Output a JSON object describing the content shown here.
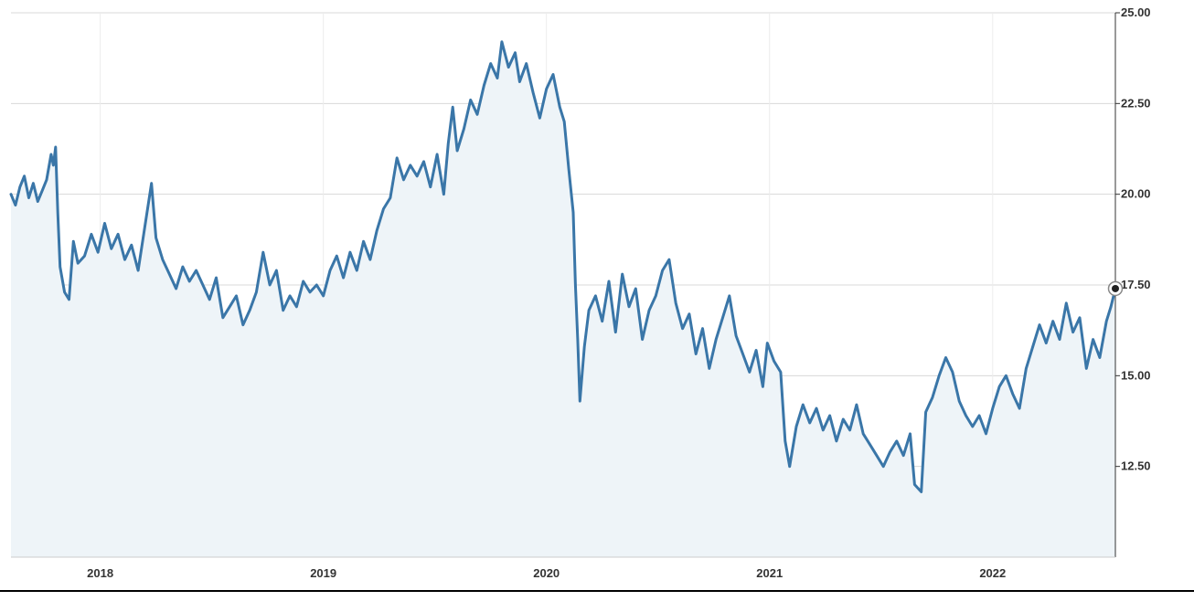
{
  "chart_data": {
    "type": "area",
    "title": "",
    "xlabel": "",
    "ylabel": "",
    "x_ticks": [
      "2018",
      "2019",
      "2020",
      "2021",
      "2022"
    ],
    "x_tick_values": [
      2018.0,
      2019.0,
      2020.0,
      2021.0,
      2022.0
    ],
    "y_ticks": [
      "12.50",
      "15.00",
      "17.50",
      "20.00",
      "22.50",
      "25.00"
    ],
    "y_tick_values": [
      12.5,
      15.0,
      17.5,
      20.0,
      22.5,
      25.0
    ],
    "xlim": [
      2017.6,
      2022.55
    ],
    "ylim": [
      10.0,
      25.0
    ],
    "grid": true,
    "y_axis_side": "right",
    "colors": {
      "line": "#3a76a8",
      "fill": "#eef4f8",
      "grid": "#d8d8d8",
      "axis": "#333333",
      "marker": "#222222"
    },
    "last_point_marker": true,
    "series": [
      {
        "values": [
          [
            2017.6,
            20.0
          ],
          [
            2017.62,
            19.7
          ],
          [
            2017.64,
            20.2
          ],
          [
            2017.66,
            20.5
          ],
          [
            2017.68,
            19.9
          ],
          [
            2017.7,
            20.3
          ],
          [
            2017.72,
            19.8
          ],
          [
            2017.74,
            20.1
          ],
          [
            2017.76,
            20.4
          ],
          [
            2017.78,
            21.1
          ],
          [
            2017.79,
            20.8
          ],
          [
            2017.8,
            21.3
          ],
          [
            2017.81,
            19.5
          ],
          [
            2017.82,
            18.0
          ],
          [
            2017.84,
            17.3
          ],
          [
            2017.86,
            17.1
          ],
          [
            2017.88,
            18.7
          ],
          [
            2017.9,
            18.1
          ],
          [
            2017.93,
            18.3
          ],
          [
            2017.96,
            18.9
          ],
          [
            2017.99,
            18.4
          ],
          [
            2018.02,
            19.2
          ],
          [
            2018.05,
            18.5
          ],
          [
            2018.08,
            18.9
          ],
          [
            2018.11,
            18.2
          ],
          [
            2018.14,
            18.6
          ],
          [
            2018.17,
            17.9
          ],
          [
            2018.2,
            19.1
          ],
          [
            2018.23,
            20.3
          ],
          [
            2018.25,
            18.8
          ],
          [
            2018.28,
            18.2
          ],
          [
            2018.31,
            17.8
          ],
          [
            2018.34,
            17.4
          ],
          [
            2018.37,
            18.0
          ],
          [
            2018.4,
            17.6
          ],
          [
            2018.43,
            17.9
          ],
          [
            2018.46,
            17.5
          ],
          [
            2018.49,
            17.1
          ],
          [
            2018.52,
            17.7
          ],
          [
            2018.55,
            16.6
          ],
          [
            2018.58,
            16.9
          ],
          [
            2018.61,
            17.2
          ],
          [
            2018.64,
            16.4
          ],
          [
            2018.67,
            16.8
          ],
          [
            2018.7,
            17.3
          ],
          [
            2018.73,
            18.4
          ],
          [
            2018.76,
            17.5
          ],
          [
            2018.79,
            17.9
          ],
          [
            2018.82,
            16.8
          ],
          [
            2018.85,
            17.2
          ],
          [
            2018.88,
            16.9
          ],
          [
            2018.91,
            17.6
          ],
          [
            2018.94,
            17.3
          ],
          [
            2018.97,
            17.5
          ],
          [
            2019.0,
            17.2
          ],
          [
            2019.03,
            17.9
          ],
          [
            2019.06,
            18.3
          ],
          [
            2019.09,
            17.7
          ],
          [
            2019.12,
            18.4
          ],
          [
            2019.15,
            17.9
          ],
          [
            2019.18,
            18.7
          ],
          [
            2019.21,
            18.2
          ],
          [
            2019.24,
            19.0
          ],
          [
            2019.27,
            19.6
          ],
          [
            2019.3,
            19.9
          ],
          [
            2019.33,
            21.0
          ],
          [
            2019.36,
            20.4
          ],
          [
            2019.39,
            20.8
          ],
          [
            2019.42,
            20.5
          ],
          [
            2019.45,
            20.9
          ],
          [
            2019.48,
            20.2
          ],
          [
            2019.51,
            21.1
          ],
          [
            2019.54,
            20.0
          ],
          [
            2019.56,
            21.4
          ],
          [
            2019.58,
            22.4
          ],
          [
            2019.6,
            21.2
          ],
          [
            2019.63,
            21.8
          ],
          [
            2019.66,
            22.6
          ],
          [
            2019.69,
            22.2
          ],
          [
            2019.72,
            23.0
          ],
          [
            2019.75,
            23.6
          ],
          [
            2019.78,
            23.2
          ],
          [
            2019.8,
            24.2
          ],
          [
            2019.83,
            23.5
          ],
          [
            2019.86,
            23.9
          ],
          [
            2019.88,
            23.1
          ],
          [
            2019.91,
            23.6
          ],
          [
            2019.94,
            22.8
          ],
          [
            2019.97,
            22.1
          ],
          [
            2020.0,
            22.9
          ],
          [
            2020.03,
            23.3
          ],
          [
            2020.06,
            22.4
          ],
          [
            2020.08,
            22.0
          ],
          [
            2020.1,
            20.7
          ],
          [
            2020.12,
            19.5
          ],
          [
            2020.13,
            17.5
          ],
          [
            2020.14,
            16.0
          ],
          [
            2020.15,
            14.3
          ],
          [
            2020.17,
            15.8
          ],
          [
            2020.19,
            16.8
          ],
          [
            2020.22,
            17.2
          ],
          [
            2020.25,
            16.5
          ],
          [
            2020.28,
            17.6
          ],
          [
            2020.31,
            16.2
          ],
          [
            2020.34,
            17.8
          ],
          [
            2020.37,
            16.9
          ],
          [
            2020.4,
            17.4
          ],
          [
            2020.43,
            16.0
          ],
          [
            2020.46,
            16.8
          ],
          [
            2020.49,
            17.2
          ],
          [
            2020.52,
            17.9
          ],
          [
            2020.55,
            18.2
          ],
          [
            2020.58,
            17.0
          ],
          [
            2020.61,
            16.3
          ],
          [
            2020.64,
            16.7
          ],
          [
            2020.67,
            15.6
          ],
          [
            2020.7,
            16.3
          ],
          [
            2020.73,
            15.2
          ],
          [
            2020.76,
            16.0
          ],
          [
            2020.79,
            16.6
          ],
          [
            2020.82,
            17.2
          ],
          [
            2020.85,
            16.1
          ],
          [
            2020.88,
            15.6
          ],
          [
            2020.91,
            15.1
          ],
          [
            2020.94,
            15.7
          ],
          [
            2020.97,
            14.7
          ],
          [
            2020.99,
            15.9
          ],
          [
            2021.02,
            15.4
          ],
          [
            2021.05,
            15.1
          ],
          [
            2021.07,
            13.2
          ],
          [
            2021.09,
            12.5
          ],
          [
            2021.12,
            13.6
          ],
          [
            2021.15,
            14.2
          ],
          [
            2021.18,
            13.7
          ],
          [
            2021.21,
            14.1
          ],
          [
            2021.24,
            13.5
          ],
          [
            2021.27,
            13.9
          ],
          [
            2021.3,
            13.2
          ],
          [
            2021.33,
            13.8
          ],
          [
            2021.36,
            13.5
          ],
          [
            2021.39,
            14.2
          ],
          [
            2021.42,
            13.4
          ],
          [
            2021.45,
            13.1
          ],
          [
            2021.48,
            12.8
          ],
          [
            2021.51,
            12.5
          ],
          [
            2021.54,
            12.9
          ],
          [
            2021.57,
            13.2
          ],
          [
            2021.6,
            12.8
          ],
          [
            2021.63,
            13.4
          ],
          [
            2021.65,
            12.0
          ],
          [
            2021.68,
            11.8
          ],
          [
            2021.7,
            14.0
          ],
          [
            2021.73,
            14.4
          ],
          [
            2021.76,
            15.0
          ],
          [
            2021.79,
            15.5
          ],
          [
            2021.82,
            15.1
          ],
          [
            2021.85,
            14.3
          ],
          [
            2021.88,
            13.9
          ],
          [
            2021.91,
            13.6
          ],
          [
            2021.94,
            13.9
          ],
          [
            2021.97,
            13.4
          ],
          [
            2022.0,
            14.1
          ],
          [
            2022.03,
            14.7
          ],
          [
            2022.06,
            15.0
          ],
          [
            2022.09,
            14.5
          ],
          [
            2022.12,
            14.1
          ],
          [
            2022.15,
            15.2
          ],
          [
            2022.18,
            15.8
          ],
          [
            2022.21,
            16.4
          ],
          [
            2022.24,
            15.9
          ],
          [
            2022.27,
            16.5
          ],
          [
            2022.3,
            16.0
          ],
          [
            2022.33,
            17.0
          ],
          [
            2022.36,
            16.2
          ],
          [
            2022.39,
            16.6
          ],
          [
            2022.42,
            15.2
          ],
          [
            2022.45,
            16.0
          ],
          [
            2022.48,
            15.5
          ],
          [
            2022.51,
            16.5
          ],
          [
            2022.53,
            16.9
          ],
          [
            2022.55,
            17.4
          ]
        ]
      }
    ]
  }
}
